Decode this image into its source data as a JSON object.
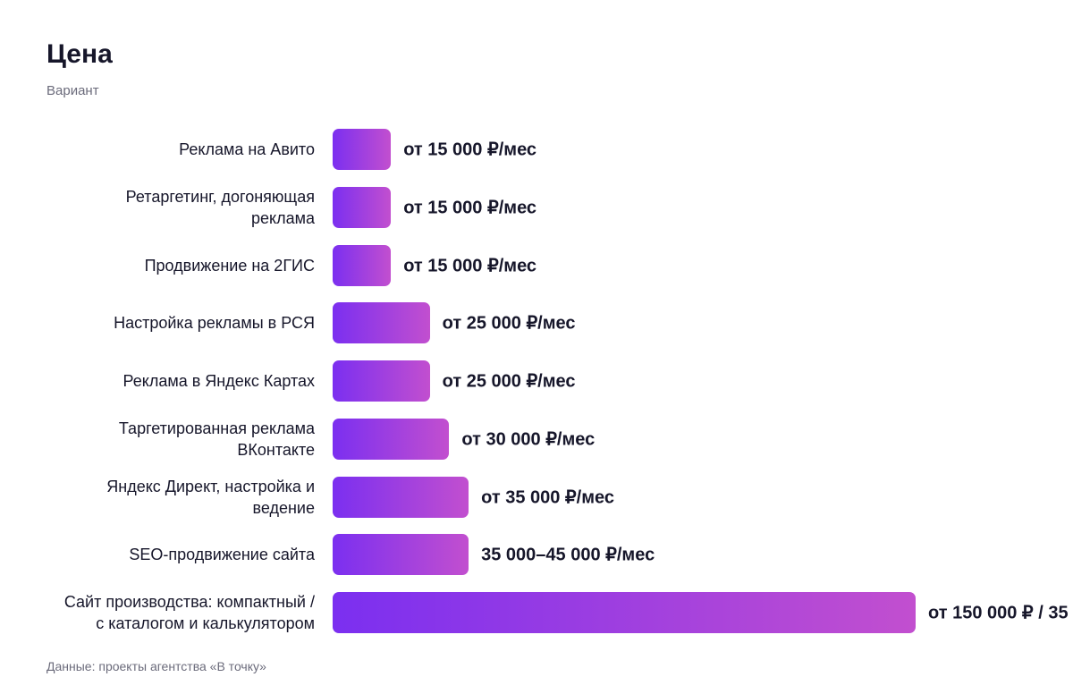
{
  "chart_data": {
    "type": "bar",
    "orientation": "horizontal",
    "title": "Цена",
    "subtitle": "Вариант",
    "note": "Данные: проекты агентства «В точку»",
    "categories": [
      "Реклама на Авито",
      "Ретаргетинг, догоняющая\nреклама",
      "Продвижение на 2ГИС",
      "Настройка рекламы в РСЯ",
      "Реклама в Яндекс Картах",
      "Таргетированная реклама\nВКонтакте",
      "Яндекс Директ, настройка и\nведение",
      "SEO-продвижение сайта",
      "Сайт производства: компактный /\nс каталогом и калькулятором"
    ],
    "values": [
      15000,
      15000,
      15000,
      25000,
      25000,
      30000,
      35000,
      35000,
      150000
    ],
    "value_labels": [
      "от 15 000 ₽/мес",
      "от 15 000 ₽/мес",
      "от 15 000 ₽/мес",
      "от 25 000 ₽/мес",
      "от 25 000 ₽/мес",
      "от 30 000 ₽/мес",
      "от 35 000 ₽/мес",
      "35 000–45 000 ₽/мес",
      "от 150 000 ₽ / 35"
    ],
    "colors": [
      "#7b2ff0",
      "#c24fcf"
    ],
    "xlim": [
      0,
      150000
    ]
  }
}
